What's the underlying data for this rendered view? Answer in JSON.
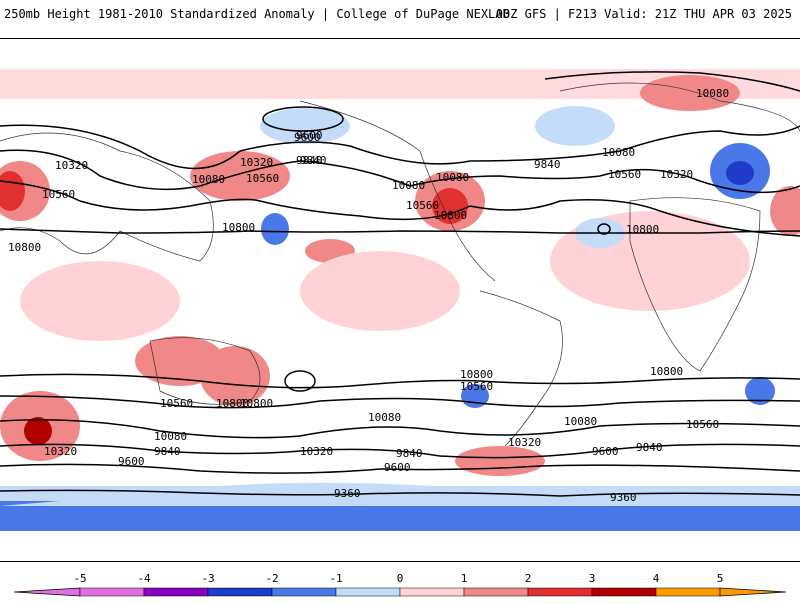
{
  "header": {
    "title_left": "250mb Height 1981-2010 Standardized Anomaly | College of DuPage NEXLAB",
    "title_right": "00Z GFS | F213 Valid: 21Z THU APR 03 2025"
  },
  "contour_labels": [
    "10320",
    "10560",
    "10800",
    "10080",
    "9840",
    "9600",
    "10320",
    "10560",
    "10080",
    "10800",
    "10080",
    "10560",
    "10800",
    "9840",
    "10560",
    "10080",
    "10320",
    "10800",
    "10800",
    "10800",
    "10560",
    "10800",
    "10080",
    "10320",
    "10080",
    "9840",
    "9600",
    "10320",
    "10560",
    "10080",
    "9840",
    "9600",
    "9360",
    "9840",
    "9600",
    "10320",
    "10080",
    "10560",
    "10800",
    "9600",
    "9840",
    "9360"
  ],
  "colorbar": {
    "ticks": [
      "-5",
      "-4",
      "-3",
      "-2",
      "-1",
      "0",
      "1",
      "2",
      "3",
      "4",
      "5"
    ],
    "colors": [
      "#e070e0",
      "#8a00c0",
      "#1e3cc8",
      "#4a78e8",
      "#c4dcfa",
      "#ffffff",
      "#ffd2d6",
      "#f08888",
      "#e03030",
      "#b00000",
      "#ff9900"
    ]
  }
}
